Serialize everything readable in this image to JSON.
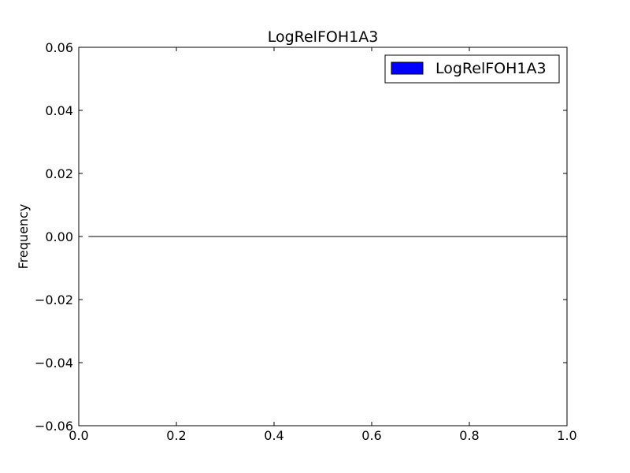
{
  "chart_data": {
    "type": "bar",
    "title": "LogRelFOH1A3",
    "xlabel": "",
    "ylabel": "Frequency",
    "xlim": [
      0.0,
      1.0
    ],
    "ylim": [
      -0.06,
      0.06
    ],
    "x_ticks": [
      0.0,
      0.2,
      0.4,
      0.6,
      0.8,
      1.0
    ],
    "x_tick_labels": [
      "0.0",
      "0.2",
      "0.4",
      "0.6",
      "0.8",
      "1.0"
    ],
    "y_ticks": [
      0.06,
      0.04,
      0.02,
      0.0,
      -0.02,
      -0.04,
      -0.06
    ],
    "y_tick_labels": [
      "0.06",
      "0.04",
      "0.02",
      "0.00",
      "−0.02",
      "−0.04",
      "−0.06"
    ],
    "series": [
      {
        "name": "LogRelFOH1A3",
        "color": "#0000ff",
        "bins": [
          {
            "x0": 0.02,
            "x1": 1.0,
            "value": 0.0
          }
        ]
      }
    ],
    "legend": {
      "position": "top-right",
      "entries": [
        "LogRelFOH1A3"
      ]
    },
    "grid": false
  }
}
